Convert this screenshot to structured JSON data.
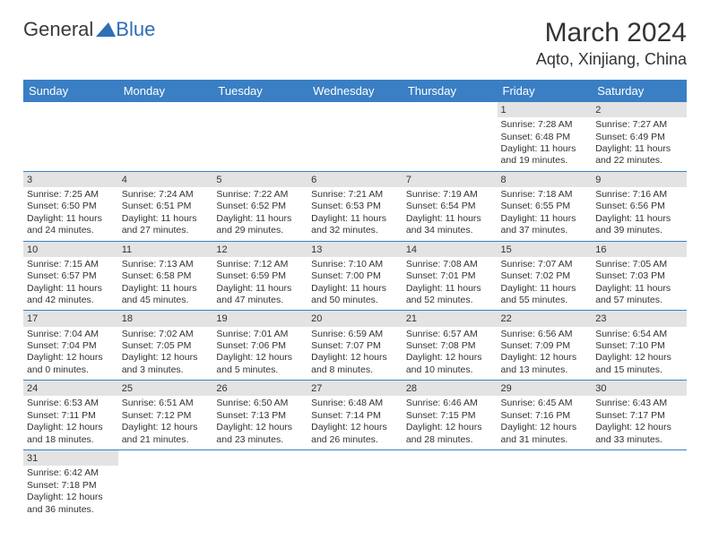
{
  "logo": {
    "text1": "General",
    "text2": "Blue"
  },
  "title": "March 2024",
  "location": "Aqto, Xinjiang, China",
  "colors": {
    "header_bg": "#3a7fc4",
    "header_fg": "#ffffff",
    "daynum_bg": "#e3e3e3",
    "logo_blue": "#2e6fb5"
  },
  "dayNames": [
    "Sunday",
    "Monday",
    "Tuesday",
    "Wednesday",
    "Thursday",
    "Friday",
    "Saturday"
  ],
  "weeks": [
    [
      null,
      null,
      null,
      null,
      null,
      {
        "n": "1",
        "sr": "7:28 AM",
        "ss": "6:48 PM",
        "dh": "11",
        "dm": "19"
      },
      {
        "n": "2",
        "sr": "7:27 AM",
        "ss": "6:49 PM",
        "dh": "11",
        "dm": "22"
      }
    ],
    [
      {
        "n": "3",
        "sr": "7:25 AM",
        "ss": "6:50 PM",
        "dh": "11",
        "dm": "24"
      },
      {
        "n": "4",
        "sr": "7:24 AM",
        "ss": "6:51 PM",
        "dh": "11",
        "dm": "27"
      },
      {
        "n": "5",
        "sr": "7:22 AM",
        "ss": "6:52 PM",
        "dh": "11",
        "dm": "29"
      },
      {
        "n": "6",
        "sr": "7:21 AM",
        "ss": "6:53 PM",
        "dh": "11",
        "dm": "32"
      },
      {
        "n": "7",
        "sr": "7:19 AM",
        "ss": "6:54 PM",
        "dh": "11",
        "dm": "34"
      },
      {
        "n": "8",
        "sr": "7:18 AM",
        "ss": "6:55 PM",
        "dh": "11",
        "dm": "37"
      },
      {
        "n": "9",
        "sr": "7:16 AM",
        "ss": "6:56 PM",
        "dh": "11",
        "dm": "39"
      }
    ],
    [
      {
        "n": "10",
        "sr": "7:15 AM",
        "ss": "6:57 PM",
        "dh": "11",
        "dm": "42"
      },
      {
        "n": "11",
        "sr": "7:13 AM",
        "ss": "6:58 PM",
        "dh": "11",
        "dm": "45"
      },
      {
        "n": "12",
        "sr": "7:12 AM",
        "ss": "6:59 PM",
        "dh": "11",
        "dm": "47"
      },
      {
        "n": "13",
        "sr": "7:10 AM",
        "ss": "7:00 PM",
        "dh": "11",
        "dm": "50"
      },
      {
        "n": "14",
        "sr": "7:08 AM",
        "ss": "7:01 PM",
        "dh": "11",
        "dm": "52"
      },
      {
        "n": "15",
        "sr": "7:07 AM",
        "ss": "7:02 PM",
        "dh": "11",
        "dm": "55"
      },
      {
        "n": "16",
        "sr": "7:05 AM",
        "ss": "7:03 PM",
        "dh": "11",
        "dm": "57"
      }
    ],
    [
      {
        "n": "17",
        "sr": "7:04 AM",
        "ss": "7:04 PM",
        "dh": "12",
        "dm": "0"
      },
      {
        "n": "18",
        "sr": "7:02 AM",
        "ss": "7:05 PM",
        "dh": "12",
        "dm": "3"
      },
      {
        "n": "19",
        "sr": "7:01 AM",
        "ss": "7:06 PM",
        "dh": "12",
        "dm": "5"
      },
      {
        "n": "20",
        "sr": "6:59 AM",
        "ss": "7:07 PM",
        "dh": "12",
        "dm": "8"
      },
      {
        "n": "21",
        "sr": "6:57 AM",
        "ss": "7:08 PM",
        "dh": "12",
        "dm": "10"
      },
      {
        "n": "22",
        "sr": "6:56 AM",
        "ss": "7:09 PM",
        "dh": "12",
        "dm": "13"
      },
      {
        "n": "23",
        "sr": "6:54 AM",
        "ss": "7:10 PM",
        "dh": "12",
        "dm": "15"
      }
    ],
    [
      {
        "n": "24",
        "sr": "6:53 AM",
        "ss": "7:11 PM",
        "dh": "12",
        "dm": "18"
      },
      {
        "n": "25",
        "sr": "6:51 AM",
        "ss": "7:12 PM",
        "dh": "12",
        "dm": "21"
      },
      {
        "n": "26",
        "sr": "6:50 AM",
        "ss": "7:13 PM",
        "dh": "12",
        "dm": "23"
      },
      {
        "n": "27",
        "sr": "6:48 AM",
        "ss": "7:14 PM",
        "dh": "12",
        "dm": "26"
      },
      {
        "n": "28",
        "sr": "6:46 AM",
        "ss": "7:15 PM",
        "dh": "12",
        "dm": "28"
      },
      {
        "n": "29",
        "sr": "6:45 AM",
        "ss": "7:16 PM",
        "dh": "12",
        "dm": "31"
      },
      {
        "n": "30",
        "sr": "6:43 AM",
        "ss": "7:17 PM",
        "dh": "12",
        "dm": "33"
      }
    ],
    [
      {
        "n": "31",
        "sr": "6:42 AM",
        "ss": "7:18 PM",
        "dh": "12",
        "dm": "36"
      },
      null,
      null,
      null,
      null,
      null,
      null
    ]
  ],
  "cellLabels": {
    "sunrise": "Sunrise: ",
    "sunset": "Sunset: ",
    "daylightA": "Daylight: ",
    "daylightB": " hours",
    "daylightC": "and ",
    "daylightD": " minutes."
  }
}
